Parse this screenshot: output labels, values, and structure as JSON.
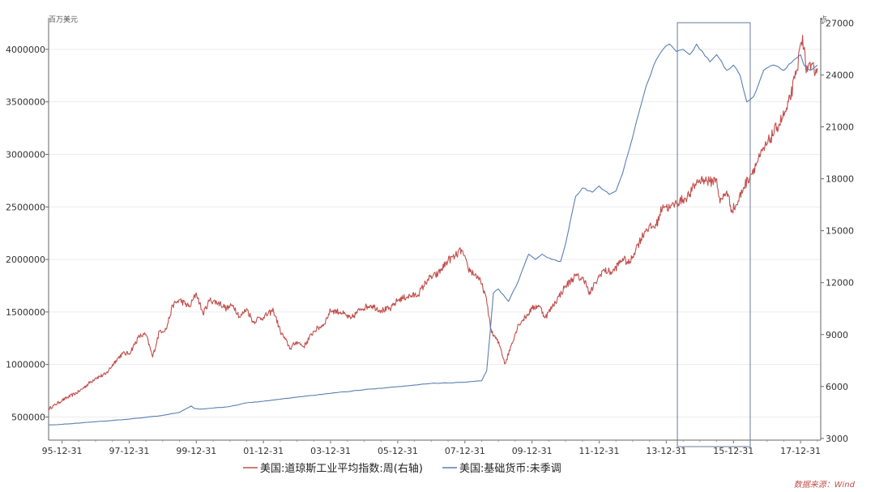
{
  "chart_data": {
    "type": "line",
    "left_axis_unit": "百万美元",
    "right_axis_unit": "点",
    "x_tick_labels": [
      "95-12-31",
      "97-12-31",
      "99-12-31",
      "01-12-31",
      "03-12-31",
      "05-12-31",
      "07-12-31",
      "09-12-31",
      "11-12-31",
      "13-12-31",
      "15-12-31",
      "17-12-31"
    ],
    "x_range": [
      1995.6,
      2018.6
    ],
    "left_ylim": [
      280000,
      4300000
    ],
    "left_ticks": [
      500000,
      1000000,
      1500000,
      2000000,
      2500000,
      3000000,
      3500000,
      4000000
    ],
    "right_ylim": [
      2900,
      27300
    ],
    "right_ticks": [
      3000,
      6000,
      9000,
      12000,
      15000,
      18000,
      21000,
      24000,
      27000
    ],
    "highlight_box_x": [
      2014.33,
      2016.5
    ],
    "series": [
      {
        "name": "美国:道琼斯工业平均指数:周(右轴)",
        "axis": "right",
        "color": "#c0504d",
        "x": [
          1995.6,
          1996.0,
          1996.5,
          1997.0,
          1997.3,
          1997.6,
          1997.8,
          1998.0,
          1998.3,
          1998.5,
          1998.7,
          1998.9,
          1999.1,
          1999.3,
          1999.5,
          1999.8,
          2000.0,
          2000.2,
          2000.4,
          2000.7,
          2000.9,
          2001.1,
          2001.3,
          2001.5,
          2001.7,
          2001.8,
          2002.0,
          2002.3,
          2002.5,
          2002.8,
          2003.0,
          2003.2,
          2003.5,
          2003.8,
          2004.0,
          2004.3,
          2004.6,
          2004.9,
          2005.2,
          2005.5,
          2005.8,
          2006.0,
          2006.3,
          2006.6,
          2006.9,
          2007.2,
          2007.5,
          2007.7,
          2007.9,
          2008.1,
          2008.4,
          2008.6,
          2008.8,
          2008.95,
          2009.05,
          2009.2,
          2009.4,
          2009.6,
          2009.8,
          2010.0,
          2010.2,
          2010.4,
          2010.6,
          2010.8,
          2011.0,
          2011.3,
          2011.6,
          2011.7,
          2011.9,
          2012.1,
          2012.4,
          2012.7,
          2012.9,
          2013.1,
          2013.4,
          2013.7,
          2013.9,
          2014.1,
          2014.3,
          2014.5,
          2014.7,
          2014.9,
          2015.1,
          2015.3,
          2015.5,
          2015.6,
          2015.8,
          2015.95,
          2016.1,
          2016.3,
          2016.5,
          2016.8,
          2017.0,
          2017.3,
          2017.6,
          2017.9,
          2018.0,
          2018.06,
          2018.15,
          2018.3,
          2018.5
        ],
        "values": [
          4700,
          5200,
          5700,
          6500,
          6700,
          7500,
          7900,
          7900,
          8900,
          9000,
          7700,
          9200,
          9300,
          10700,
          11000,
          10600,
          11400,
          10200,
          11000,
          10800,
          10500,
          10700,
          10000,
          10500,
          9700,
          9900,
          10000,
          10400,
          9200,
          8200,
          8600,
          8300,
          9200,
          9600,
          10400,
          10300,
          9900,
          10500,
          10700,
          10400,
          10500,
          11000,
          11200,
          11300,
          12200,
          12500,
          13300,
          13500,
          13900,
          12800,
          12300,
          11400,
          9100,
          8700,
          8300,
          7300,
          8500,
          9600,
          10000,
          10500,
          10700,
          10000,
          10600,
          11200,
          11800,
          12400,
          12100,
          11300,
          12000,
          12700,
          12600,
          13400,
          13100,
          14000,
          15100,
          15300,
          16500,
          16300,
          16600,
          16800,
          17100,
          17800,
          18000,
          17800,
          18000,
          16600,
          17300,
          16200,
          16500,
          17500,
          18200,
          19300,
          20000,
          21000,
          22000,
          24300,
          25800,
          26300,
          24500,
          24300,
          24400
        ]
      },
      {
        "name": "美国:基础货币:未季调",
        "axis": "left",
        "color": "#5b7fb4",
        "x": [
          1995.6,
          1996.0,
          1997.0,
          1998.0,
          1999.0,
          1999.5,
          1999.85,
          1999.95,
          2000.1,
          2000.5,
          2001.0,
          2001.5,
          2002.0,
          2003.0,
          2004.0,
          2005.0,
          2006.0,
          2007.0,
          2007.9,
          2008.5,
          2008.65,
          2008.75,
          2008.85,
          2009.0,
          2009.3,
          2009.6,
          2009.9,
          2010.1,
          2010.3,
          2010.6,
          2010.85,
          2011.0,
          2011.3,
          2011.5,
          2011.8,
          2012.0,
          2012.3,
          2012.5,
          2012.7,
          2012.9,
          2013.1,
          2013.4,
          2013.7,
          2013.9,
          2014.1,
          2014.3,
          2014.5,
          2014.7,
          2014.9,
          2015.0,
          2015.3,
          2015.5,
          2015.8,
          2016.0,
          2016.2,
          2016.4,
          2016.6,
          2016.9,
          2017.2,
          2017.5,
          2017.8,
          2018.0,
          2018.1,
          2018.3,
          2018.5
        ],
        "values": [
          425000,
          430000,
          455000,
          480000,
          515000,
          545000,
          605000,
          580000,
          575000,
          585000,
          600000,
          635000,
          650000,
          690000,
          725000,
          760000,
          790000,
          820000,
          830000,
          845000,
          940000,
          1300000,
          1680000,
          1720000,
          1600000,
          1800000,
          2050000,
          2000000,
          2050000,
          2000000,
          1980000,
          2150000,
          2600000,
          2680000,
          2640000,
          2700000,
          2620000,
          2650000,
          2820000,
          3050000,
          3300000,
          3650000,
          3900000,
          4000000,
          4050000,
          3980000,
          4000000,
          3950000,
          4050000,
          4000000,
          3880000,
          3950000,
          3800000,
          3850000,
          3750000,
          3500000,
          3550000,
          3800000,
          3850000,
          3800000,
          3900000,
          3950000,
          3850000,
          3800000,
          3850000
        ]
      }
    ]
  },
  "legend": {
    "dow_label": "美国:道琼斯工业平均指数:周(右轴)",
    "base_label": "美国:基础货币:未季调"
  },
  "source": {
    "text": "数据来源：Wind",
    "color": "#c0504d"
  }
}
